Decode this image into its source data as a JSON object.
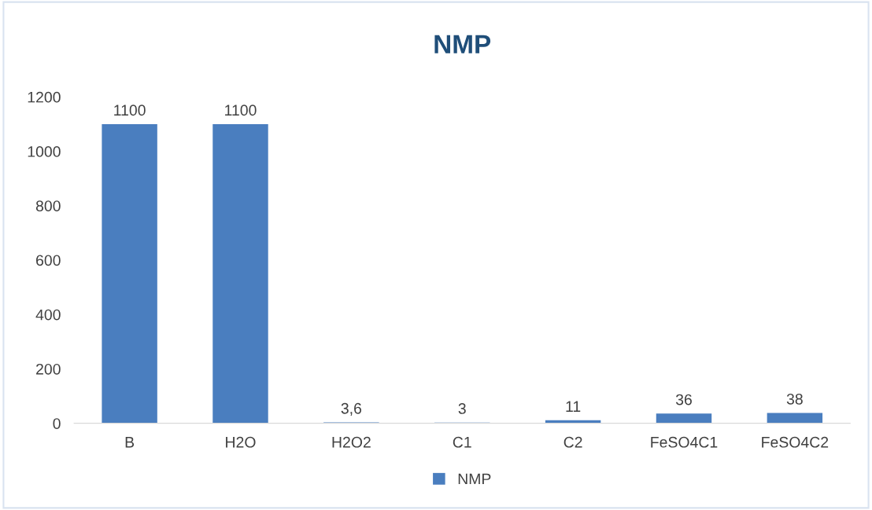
{
  "chart_data": {
    "type": "bar",
    "title": "NMP",
    "categories": [
      "B",
      "H2O",
      "H2O2",
      "C1",
      "C2",
      "FeSO4C1",
      "FeSO4C2"
    ],
    "series": [
      {
        "name": "NMP",
        "color": "#4a7ebf",
        "values": [
          1100,
          1100,
          3.6,
          3,
          11,
          36,
          38
        ],
        "value_labels": [
          "1100",
          "1100",
          "3,6",
          "3",
          "11",
          "36",
          "38"
        ]
      }
    ],
    "ylim": [
      0,
      1200
    ],
    "yticks": [
      0,
      200,
      400,
      600,
      800,
      1000,
      1200
    ],
    "grid": false,
    "legend": "bottom"
  }
}
